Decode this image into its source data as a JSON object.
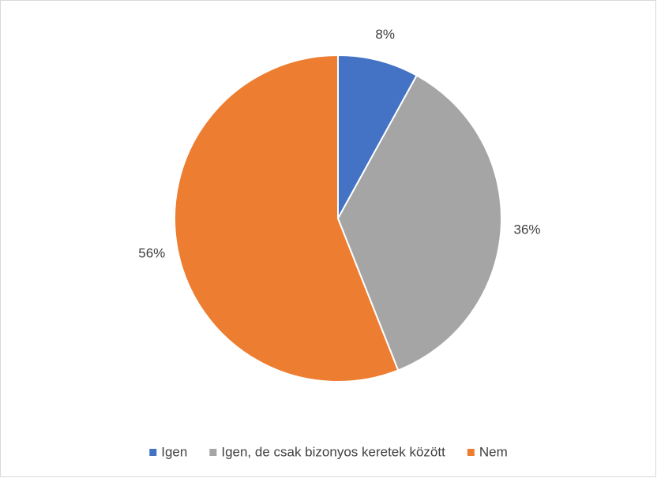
{
  "chart_data": {
    "type": "pie",
    "categories": [
      "Igen",
      "Igen, de csak bizonyos keretek között",
      "Nem"
    ],
    "values": [
      8,
      36,
      56
    ],
    "value_labels": [
      "8%",
      "36%",
      "56%"
    ],
    "colors": [
      "#4472c4",
      "#a5a5a5",
      "#ed7d31"
    ],
    "legend": "bottom"
  }
}
